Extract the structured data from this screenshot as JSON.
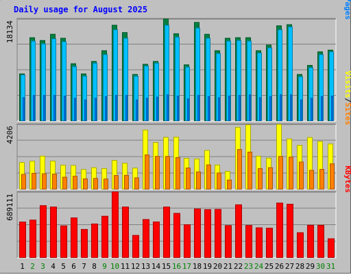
{
  "chart_data": {
    "type": "bar",
    "title": "Daily usage for August 2025",
    "categories": [
      "1",
      "2",
      "3",
      "4",
      "5",
      "6",
      "7",
      "8",
      "9",
      "10",
      "11",
      "12",
      "13",
      "14",
      "15",
      "16",
      "17",
      "18",
      "19",
      "20",
      "21",
      "22",
      "23",
      "24",
      "25",
      "26",
      "27",
      "28",
      "29",
      "30",
      "31"
    ],
    "weekend_days": [
      "2",
      "3",
      "9",
      "10",
      "16",
      "17",
      "23",
      "24",
      "30",
      "31"
    ],
    "panels": [
      {
        "id": "hits-files-pages",
        "ymax": 18134,
        "max_label": "18134",
        "axis_label": {
          "parts": [
            "Pages",
            "/",
            "Files",
            "/",
            "Hits"
          ]
        },
        "series": [
          {
            "name": "Hits",
            "color": "#008040",
            "values": [
              8400,
              14800,
              14300,
              15400,
              14700,
              10200,
              8400,
              10600,
              12500,
              17000,
              15700,
              8300,
              10100,
              10600,
              18100,
              15500,
              10000,
              17500,
              15400,
              12500,
              14700,
              14800,
              14800,
              12500,
              13500,
              16900,
              17100,
              8300,
              9900,
              12300,
              12600
            ]
          },
          {
            "name": "Files",
            "color": "#00c0ff",
            "values": [
              8200,
              14200,
              13700,
              14600,
              14100,
              9700,
              8000,
              10300,
              11800,
              16200,
              14700,
              8000,
              9800,
              10300,
              17000,
              14900,
              9600,
              16500,
              14700,
              12000,
              14200,
              14300,
              14200,
              12100,
              13000,
              16200,
              16700,
              7900,
              9500,
              11800,
              12300
            ]
          },
          {
            "name": "Pages",
            "color": "#0080ff",
            "values": [
              4200,
              4600,
              4600,
              4600,
              4500,
              4100,
              3800,
              4100,
              4400,
              4600,
              4600,
              3800,
              4100,
              4300,
              4700,
              4500,
              4000,
              4600,
              4400,
              4200,
              4500,
              4600,
              4700,
              4200,
              4400,
              4700,
              4700,
              3800,
              4100,
              4400,
              4500
            ]
          }
        ]
      },
      {
        "id": "visits-sites",
        "ymax": 4206,
        "max_label": "4206",
        "axis_label": {
          "parts": [
            "Sites",
            "/",
            "Visits"
          ]
        },
        "series": [
          {
            "name": "Visits",
            "color": "#ffff00",
            "values": [
              1750,
              1830,
              2160,
              1840,
              1580,
              1560,
              1300,
              1420,
              1360,
              1880,
              1700,
              1390,
              3830,
              3030,
              3360,
              3380,
              2020,
              1980,
              2520,
              1590,
              1180,
              4000,
              4160,
              2160,
              2030,
              4190,
              3260,
              2850,
              3350,
              3100,
              2940
            ]
          },
          {
            "name": "Sites",
            "color": "#ff8000",
            "values": [
              990,
              1060,
              1030,
              1010,
              810,
              870,
              700,
              730,
              690,
              920,
              930,
              770,
              2240,
              2140,
              2140,
              2070,
              1400,
              1150,
              1600,
              1080,
              630,
              2580,
              2420,
              1360,
              1420,
              2140,
              2100,
              1780,
              1250,
              1310,
              1670
            ]
          }
        ]
      },
      {
        "id": "kbytes",
        "ymax": 689111,
        "max_label": "689111",
        "axis_label": {
          "parts": [
            "KBytes"
          ]
        },
        "series": [
          {
            "name": "KBytes",
            "color": "#ff0000",
            "values": [
              376000,
              396000,
              546000,
              532000,
              336000,
              419000,
              299000,
              356000,
              436000,
              689000,
              532000,
              237000,
              402000,
              377000,
              532000,
              466000,
              348000,
              512000,
              505000,
              507000,
              339000,
              555000,
              340000,
              316000,
              312000,
              573000,
              561000,
              265000,
              342000,
              342000,
              202000
            ]
          }
        ]
      }
    ]
  }
}
